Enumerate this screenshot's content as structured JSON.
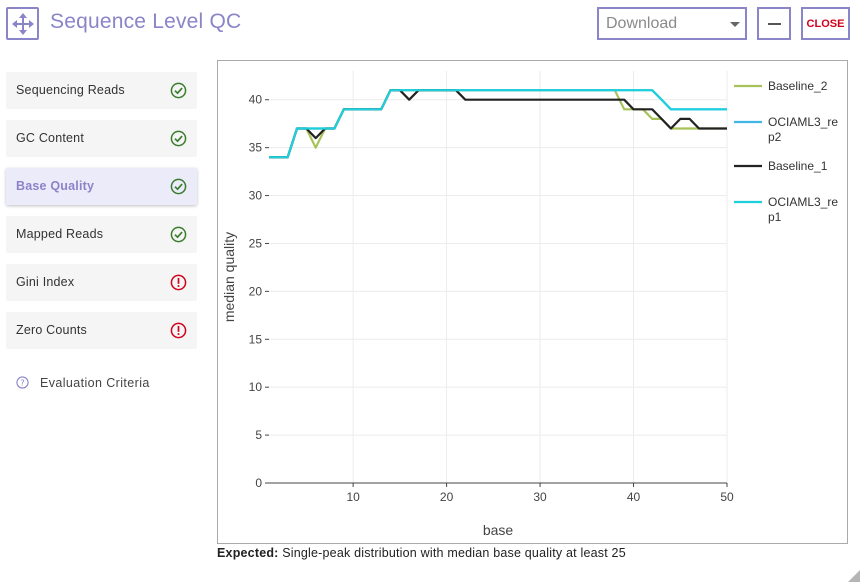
{
  "header": {
    "title": "Sequence Level QC",
    "download": {
      "selected": "Download"
    },
    "close_label": "CLOSE"
  },
  "sidebar": {
    "items": [
      {
        "label": "Sequencing Reads",
        "status": "pass"
      },
      {
        "label": "GC Content",
        "status": "pass"
      },
      {
        "label": "Base Quality",
        "status": "pass",
        "active": true
      },
      {
        "label": "Mapped Reads",
        "status": "pass"
      },
      {
        "label": "Gini Index",
        "status": "fail"
      },
      {
        "label": "Zero Counts",
        "status": "fail"
      }
    ],
    "criteria_label": "Evaluation Criteria"
  },
  "colors": {
    "accent": "#8a84c9",
    "pass": "#3a7d2c",
    "fail": "#d0021b"
  },
  "chart_data": {
    "type": "line",
    "xlabel": "base",
    "ylabel": "median quality",
    "xlim": [
      1,
      50
    ],
    "ylim": [
      0,
      43
    ],
    "x_ticks": [
      10,
      20,
      30,
      40,
      50
    ],
    "y_ticks": [
      0,
      5,
      10,
      15,
      20,
      25,
      30,
      35,
      40
    ],
    "grid": true,
    "legend": "right",
    "series": [
      {
        "name": "Baseline_2",
        "color": "#a8c25a",
        "x": [
          1,
          2,
          3,
          4,
          5,
          6,
          7,
          8,
          9,
          10,
          11,
          12,
          13,
          14,
          15,
          16,
          17,
          18,
          19,
          20,
          21,
          22,
          23,
          24,
          25,
          26,
          27,
          28,
          29,
          30,
          31,
          32,
          33,
          34,
          35,
          36,
          37,
          38,
          39,
          40,
          41,
          42,
          43,
          44,
          45,
          46,
          47,
          48,
          49,
          50
        ],
        "y": [
          34,
          34,
          34,
          37,
          37,
          35,
          37,
          37,
          39,
          39,
          39,
          39,
          39,
          41,
          41,
          41,
          41,
          41,
          41,
          41,
          41,
          41,
          41,
          41,
          41,
          41,
          41,
          41,
          41,
          41,
          41,
          41,
          41,
          41,
          41,
          41,
          41,
          41,
          39,
          39,
          39,
          38,
          38,
          37,
          37,
          37,
          37,
          37,
          37,
          37
        ]
      },
      {
        "name": "OCIAML3_rep2",
        "color": "#3fb6e6",
        "x": [
          1,
          2,
          3,
          4,
          5,
          6,
          7,
          8,
          9,
          10,
          11,
          12,
          13,
          14,
          15,
          16,
          17,
          18,
          19,
          20,
          21,
          22,
          23,
          24,
          25,
          26,
          27,
          28,
          29,
          30,
          31,
          32,
          33,
          34,
          35,
          36,
          37,
          38,
          39,
          40,
          41,
          42,
          43,
          44,
          45,
          46,
          47,
          48,
          49,
          50
        ],
        "y": [
          34,
          34,
          34,
          37,
          37,
          37,
          37,
          37,
          39,
          39,
          39,
          39,
          39,
          41,
          41,
          41,
          41,
          41,
          41,
          41,
          41,
          41,
          41,
          41,
          41,
          41,
          41,
          41,
          41,
          41,
          41,
          41,
          41,
          41,
          41,
          41,
          41,
          41,
          41,
          41,
          41,
          41,
          40,
          39,
          39,
          39,
          39,
          39,
          39,
          39
        ]
      },
      {
        "name": "Baseline_1",
        "color": "#222222",
        "x": [
          1,
          2,
          3,
          4,
          5,
          6,
          7,
          8,
          9,
          10,
          11,
          12,
          13,
          14,
          15,
          16,
          17,
          18,
          19,
          20,
          21,
          22,
          23,
          24,
          25,
          26,
          27,
          28,
          29,
          30,
          31,
          32,
          33,
          34,
          35,
          36,
          37,
          38,
          39,
          40,
          41,
          42,
          43,
          44,
          45,
          46,
          47,
          48,
          49,
          50
        ],
        "y": [
          34,
          34,
          34,
          37,
          37,
          36,
          37,
          37,
          39,
          39,
          39,
          39,
          39,
          41,
          41,
          40,
          41,
          41,
          41,
          41,
          41,
          40,
          40,
          40,
          40,
          40,
          40,
          40,
          40,
          40,
          40,
          40,
          40,
          40,
          40,
          40,
          40,
          40,
          40,
          39,
          39,
          39,
          38,
          37,
          38,
          38,
          37,
          37,
          37,
          37
        ]
      },
      {
        "name": "OCIAML3_rep1",
        "color": "#1fd0dc",
        "x": [
          1,
          2,
          3,
          4,
          5,
          6,
          7,
          8,
          9,
          10,
          11,
          12,
          13,
          14,
          15,
          16,
          17,
          18,
          19,
          20,
          21,
          22,
          23,
          24,
          25,
          26,
          27,
          28,
          29,
          30,
          31,
          32,
          33,
          34,
          35,
          36,
          37,
          38,
          39,
          40,
          41,
          42,
          43,
          44,
          45,
          46,
          47,
          48,
          49,
          50
        ],
        "y": [
          34,
          34,
          34,
          37,
          37,
          37,
          37,
          37,
          39,
          39,
          39,
          39,
          39,
          41,
          41,
          41,
          41,
          41,
          41,
          41,
          41,
          41,
          41,
          41,
          41,
          41,
          41,
          41,
          41,
          41,
          41,
          41,
          41,
          41,
          41,
          41,
          41,
          41,
          41,
          41,
          41,
          41,
          40,
          39,
          39,
          39,
          39,
          39,
          39,
          39
        ]
      }
    ]
  },
  "expected": {
    "label": "Expected:",
    "text": " Single-peak distribution with median base quality at least 25"
  }
}
